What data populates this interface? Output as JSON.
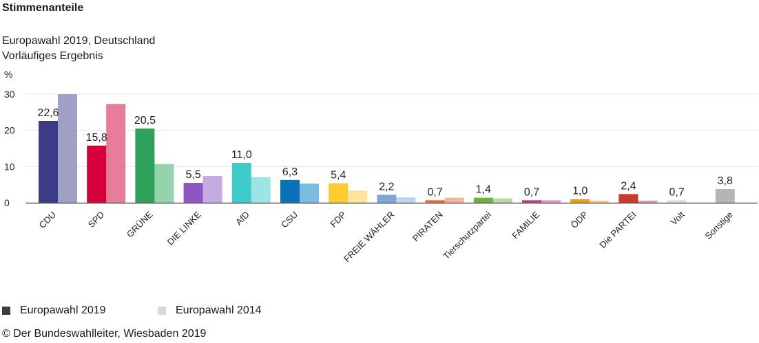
{
  "heading": "Stimmenanteile",
  "title": "Europawahl 2019, Deutschland",
  "subtitle": "Vorläufiges Ergebnis",
  "unit_label": "%",
  "legend": {
    "series_2019": "Europawahl 2019",
    "series_2014": "Europawahl 2014"
  },
  "copyright": "© Der Bundeswahlleiter, Wiesbaden 2019",
  "chart_data": {
    "type": "bar",
    "title": "Europawahl 2019, Deutschland",
    "subtitle": "Vorläufiges Ergebnis",
    "ylabel": "%",
    "ylim": [
      0,
      30
    ],
    "yticks": [
      0,
      10,
      20,
      30
    ],
    "grid": true,
    "legend_position": "bottom-left",
    "categories": [
      "CDU",
      "SPD",
      "GRÜNE",
      "DIE LINKE",
      "AfD",
      "CSU",
      "FDP",
      "FREIE WÄHLER",
      "PIRATEN",
      "Tierschutzpartei",
      "FAMILIE",
      "ÖDP",
      "Die PARTEI",
      "Volt",
      "Sonstige"
    ],
    "series": [
      {
        "name": "Europawahl 2019",
        "values": [
          22.6,
          15.8,
          20.5,
          5.5,
          11.0,
          6.3,
          5.4,
          2.2,
          0.7,
          1.4,
          0.7,
          1.0,
          2.4,
          0.7,
          3.8
        ],
        "labels": [
          "22,6",
          "15,8",
          "20,5",
          "5,5",
          "11,0",
          "6,3",
          "5,4",
          "2,2",
          "0,7",
          "1,4",
          "0,7",
          "1,0",
          "2,4",
          "0,7",
          "3,8"
        ]
      },
      {
        "name": "Europawahl 2014",
        "values": [
          30.0,
          27.3,
          10.7,
          7.4,
          7.1,
          5.3,
          3.4,
          1.5,
          1.4,
          1.2,
          0.7,
          0.6,
          0.6,
          0.0,
          null
        ]
      }
    ],
    "colors_2019": [
      "#3b3b86",
      "#d4003b",
      "#2ea05a",
      "#8e56c2",
      "#3dcbcb",
      "#0a73b8",
      "#fdcc2f",
      "#7ea8dd",
      "#f26a2c",
      "#6eb046",
      "#c4378b",
      "#f49c14",
      "#c8392e",
      "#dedede",
      "#b5b5b5"
    ],
    "colors_2014": [
      "#9ea0c6",
      "#e77c98",
      "#95d3af",
      "#c6abe1",
      "#9de5e5",
      "#7cbce1",
      "#fee39a",
      "#c0d4ee",
      "#f8b596",
      "#b6d8a2",
      "#e29bc5",
      "#f9cd89",
      "#e39c96",
      "#eeeeee",
      "#dadada"
    ],
    "legend_colors": [
      "#3d3d3d",
      "#d9d9d9"
    ],
    "axis_color": "#5f5f5f",
    "grid_color": "#e3e3e3"
  }
}
